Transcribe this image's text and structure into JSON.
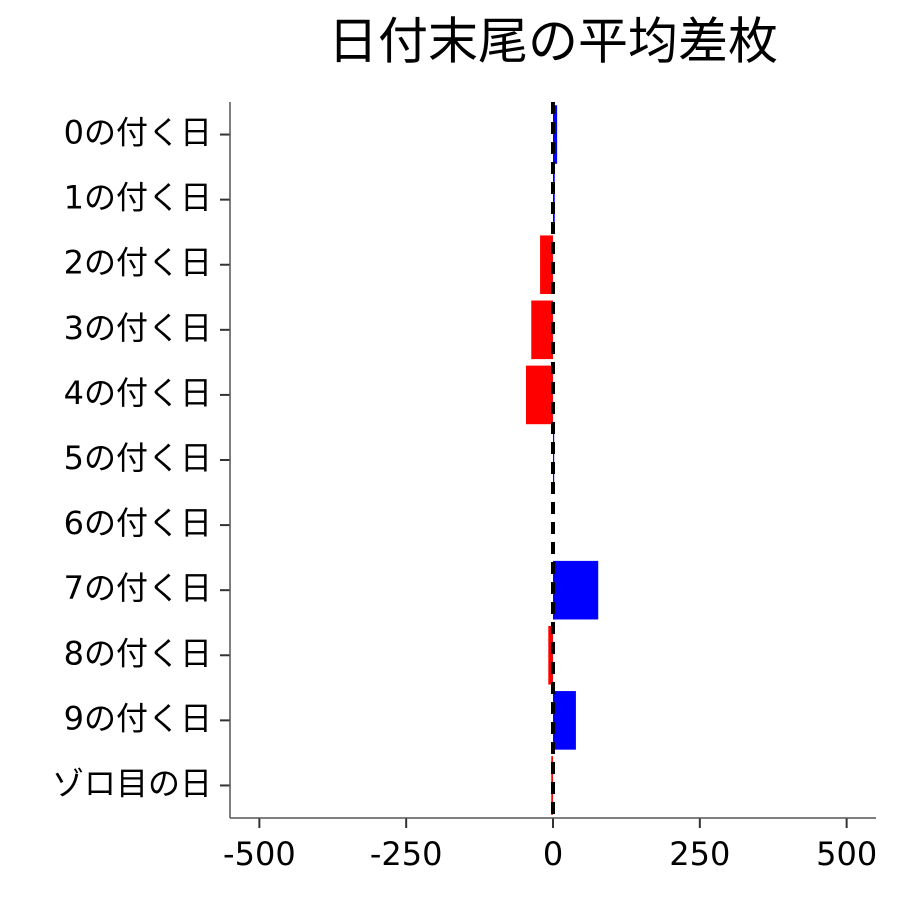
{
  "chart_data": {
    "type": "barh",
    "title": "日付末尾の平均差枚",
    "categories": [
      "0の付く日",
      "1の付く日",
      "2の付く日",
      "3の付く日",
      "4の付く日",
      "5の付く日",
      "6の付く日",
      "7の付く日",
      "8の付く日",
      "9の付く日",
      "ゾロ目の日"
    ],
    "values": [
      7,
      3,
      -22,
      -37,
      -46,
      2,
      0,
      77,
      -8,
      39,
      -3
    ],
    "colors": [
      "#0000ff",
      "#0000ff",
      "#ff0000",
      "#ff0000",
      "#ff0000",
      "#0000ff",
      "#0000ff",
      "#0000ff",
      "#ff0000",
      "#0000ff",
      "#ff0000"
    ],
    "xlim": [
      -550,
      550
    ],
    "xticks": [
      -500,
      -250,
      0,
      250,
      500
    ],
    "reference_line": 0
  }
}
